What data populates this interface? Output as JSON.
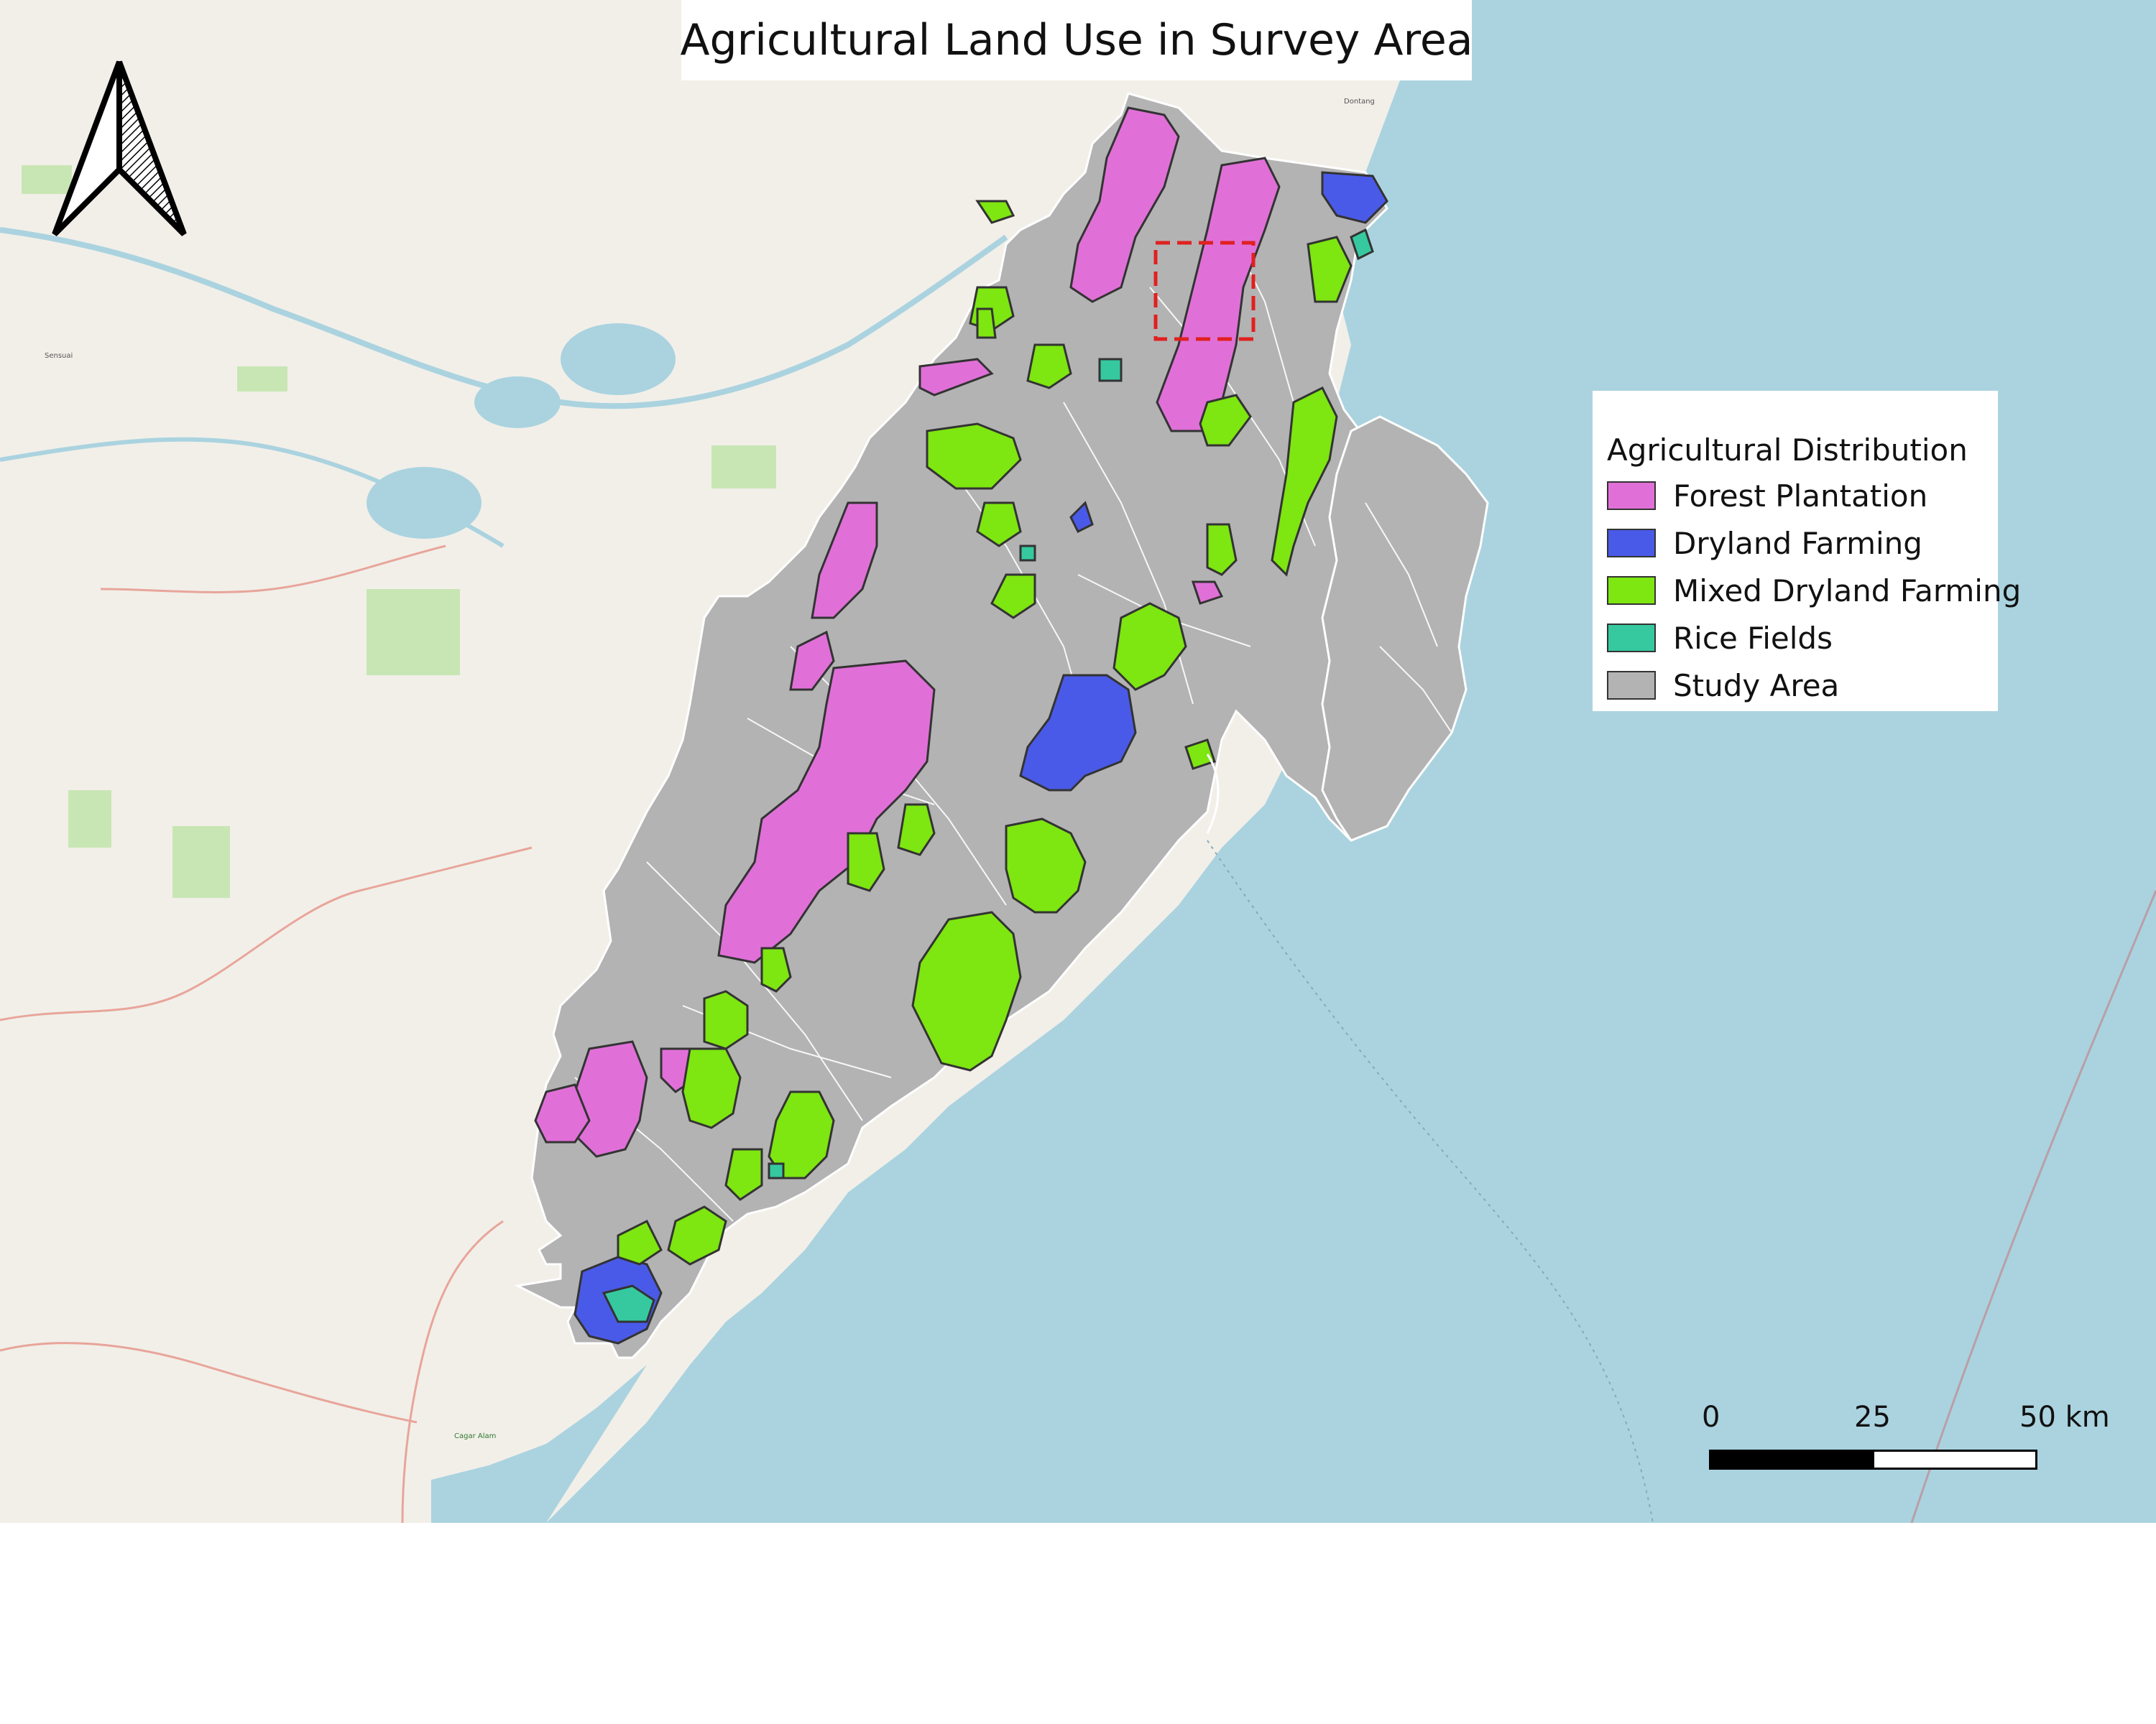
{
  "title": "Agricultural Land Use in Survey Area",
  "legend": {
    "title": "Agricultural Distribution",
    "items": [
      {
        "label": "Forest Plantation",
        "color": "#e070d8"
      },
      {
        "label": "Dryland Farming",
        "color": "#4a5ae8"
      },
      {
        "label": "Mixed Dryland Farming",
        "color": "#7ee610"
      },
      {
        "label": "Rice Fields",
        "color": "#36c9a0"
      },
      {
        "label": "Study Area",
        "color": "#b3b3b3"
      }
    ]
  },
  "scale_bar": {
    "labels": [
      "0",
      "25",
      "50 km"
    ]
  },
  "basemap": {
    "sea_color": "#aad3df",
    "land_color": "#f2efe9",
    "place_labels": [
      "Sensuai",
      "Dontang",
      "Cagar Alam"
    ]
  },
  "north_arrow": {
    "icon": "north-arrow-icon"
  },
  "highlight": {
    "style": "red-dashed-box"
  }
}
